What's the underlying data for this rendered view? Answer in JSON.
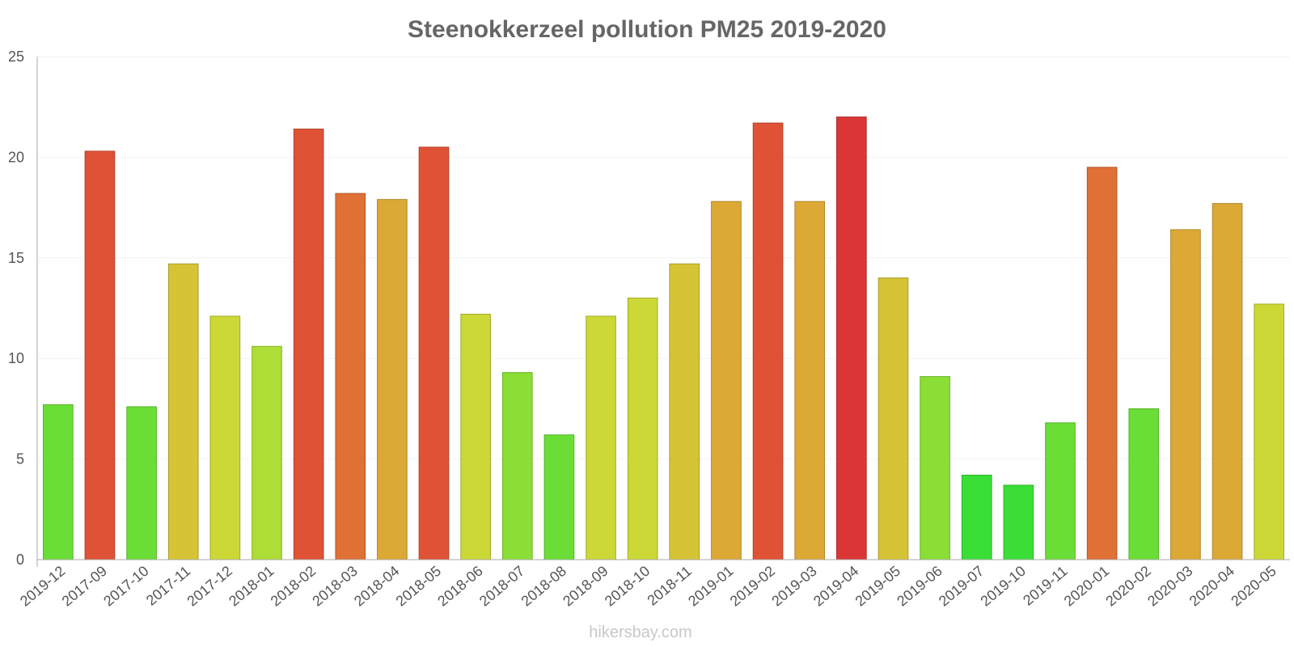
{
  "chart_data": {
    "type": "bar",
    "title": "Steenokkerzeel pollution PM25 2019-2020",
    "xlabel": "",
    "ylabel": "",
    "ylim": [
      0,
      25
    ],
    "yticks": [
      "0",
      "5",
      "10",
      "15",
      "20",
      "25"
    ],
    "grid": true,
    "categories": [
      "2019-12",
      "2017-09",
      "2017-10",
      "2017-11",
      "2017-12",
      "2018-01",
      "2018-02",
      "2018-03",
      "2018-04",
      "2018-05",
      "2018-06",
      "2018-07",
      "2018-08",
      "2018-09",
      "2018-10",
      "2018-11",
      "2019-01",
      "2019-02",
      "2019-03",
      "2019-04",
      "2019-05",
      "2019-06",
      "2019-07",
      "2019-10",
      "2019-11",
      "2020-01",
      "2020-02",
      "2020-03",
      "2020-04",
      "2020-05"
    ],
    "values": [
      7.7,
      20.3,
      7.6,
      14.7,
      12.1,
      10.6,
      21.4,
      18.2,
      17.9,
      20.5,
      12.2,
      9.3,
      6.2,
      12.1,
      13.0,
      14.7,
      17.8,
      21.7,
      17.8,
      22.0,
      14.0,
      9.1,
      4.2,
      3.7,
      6.8,
      19.5,
      7.5,
      16.4,
      17.7,
      12.7
    ],
    "colors": [
      "#6ade36",
      "#df5236",
      "#6ade36",
      "#d6c436",
      "#cbd836",
      "#addd36",
      "#df5236",
      "#df7036",
      "#dca836",
      "#df5236",
      "#cbd836",
      "#8ade36",
      "#6ade36",
      "#cbd836",
      "#cbd836",
      "#d6c436",
      "#dca836",
      "#df5236",
      "#dca836",
      "#db3636",
      "#d6c436",
      "#8ade36",
      "#3ade36",
      "#3ade36",
      "#6ade36",
      "#df7036",
      "#6ade36",
      "#dca836",
      "#dca836",
      "#cbd836"
    ]
  },
  "watermark": "hikersbay.com"
}
